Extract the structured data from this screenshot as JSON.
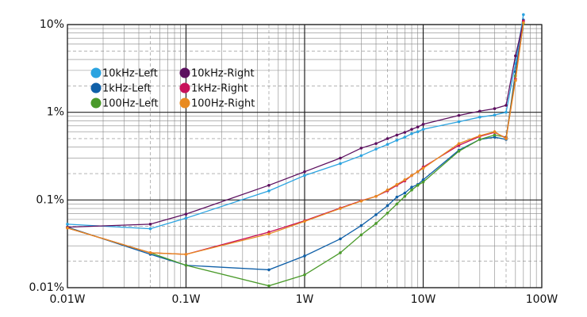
{
  "chart_data": {
    "type": "line",
    "log_x": true,
    "log_y": true,
    "grid": true,
    "legend": "upper-left",
    "x": [
      0.01,
      0.05,
      0.1,
      0.5,
      1,
      2,
      3,
      4,
      5,
      6,
      7,
      8,
      9,
      10,
      20,
      30,
      40,
      50,
      60,
      70
    ],
    "xlim": [
      0.01,
      100
    ],
    "xticks": [
      {
        "value": 0.01,
        "label": "0.01W"
      },
      {
        "value": 0.1,
        "label": "0.1W"
      },
      {
        "value": 1,
        "label": "1W"
      },
      {
        "value": 10,
        "label": "10W"
      },
      {
        "value": 100,
        "label": "100W"
      }
    ],
    "ylim": [
      0.01,
      10
    ],
    "yticks": [
      {
        "value": 0.01,
        "label": "0.01%"
      },
      {
        "value": 0.1,
        "label": "0.1%"
      },
      {
        "value": 1,
        "label": "1%"
      },
      {
        "value": 10,
        "label": "10%"
      }
    ],
    "series": [
      {
        "name": "10kHz-Left",
        "color": "#2aa3e0",
        "values": [
          0.053,
          0.047,
          0.062,
          0.127,
          0.19,
          0.26,
          0.32,
          0.38,
          0.43,
          0.48,
          0.52,
          0.57,
          0.6,
          0.64,
          0.78,
          0.88,
          0.93,
          1.0,
          3.6,
          13
        ]
      },
      {
        "name": "1kHz-Left",
        "color": "#1060a8",
        "values": [
          0.049,
          0.024,
          0.018,
          0.016,
          0.023,
          0.036,
          0.051,
          0.068,
          0.086,
          0.108,
          0.12,
          0.14,
          0.15,
          0.17,
          0.37,
          0.49,
          0.52,
          0.49,
          2.9,
          11.3
        ]
      },
      {
        "name": "100Hz-Left",
        "color": "#4a9a2a",
        "values": [
          0.048,
          0.025,
          0.018,
          0.0105,
          0.014,
          0.025,
          0.04,
          0.054,
          0.071,
          0.09,
          0.11,
          0.13,
          0.147,
          0.16,
          0.36,
          0.49,
          0.55,
          0.52,
          2.6,
          10.2
        ]
      },
      {
        "name": "10kHz-Right",
        "color": "#5c0f5f",
        "values": [
          0.049,
          0.053,
          0.069,
          0.147,
          0.21,
          0.3,
          0.39,
          0.44,
          0.5,
          0.55,
          0.59,
          0.64,
          0.68,
          0.73,
          0.92,
          1.03,
          1.1,
          1.2,
          4.4,
          10.8
        ]
      },
      {
        "name": "1kHz-Right",
        "color": "#c8105a",
        "values": [
          0.048,
          0.025,
          0.024,
          0.043,
          0.058,
          0.081,
          0.098,
          0.11,
          0.127,
          0.147,
          0.165,
          0.19,
          0.21,
          0.237,
          0.42,
          0.53,
          0.59,
          0.51,
          2.4,
          11
        ]
      },
      {
        "name": "100Hz-Right",
        "color": "#e88a20",
        "values": [
          0.048,
          0.025,
          0.024,
          0.041,
          0.057,
          0.08,
          0.097,
          0.11,
          0.13,
          0.15,
          0.17,
          0.19,
          0.21,
          0.23,
          0.44,
          0.54,
          0.6,
          0.5,
          2.3,
          10.5
        ]
      }
    ]
  }
}
